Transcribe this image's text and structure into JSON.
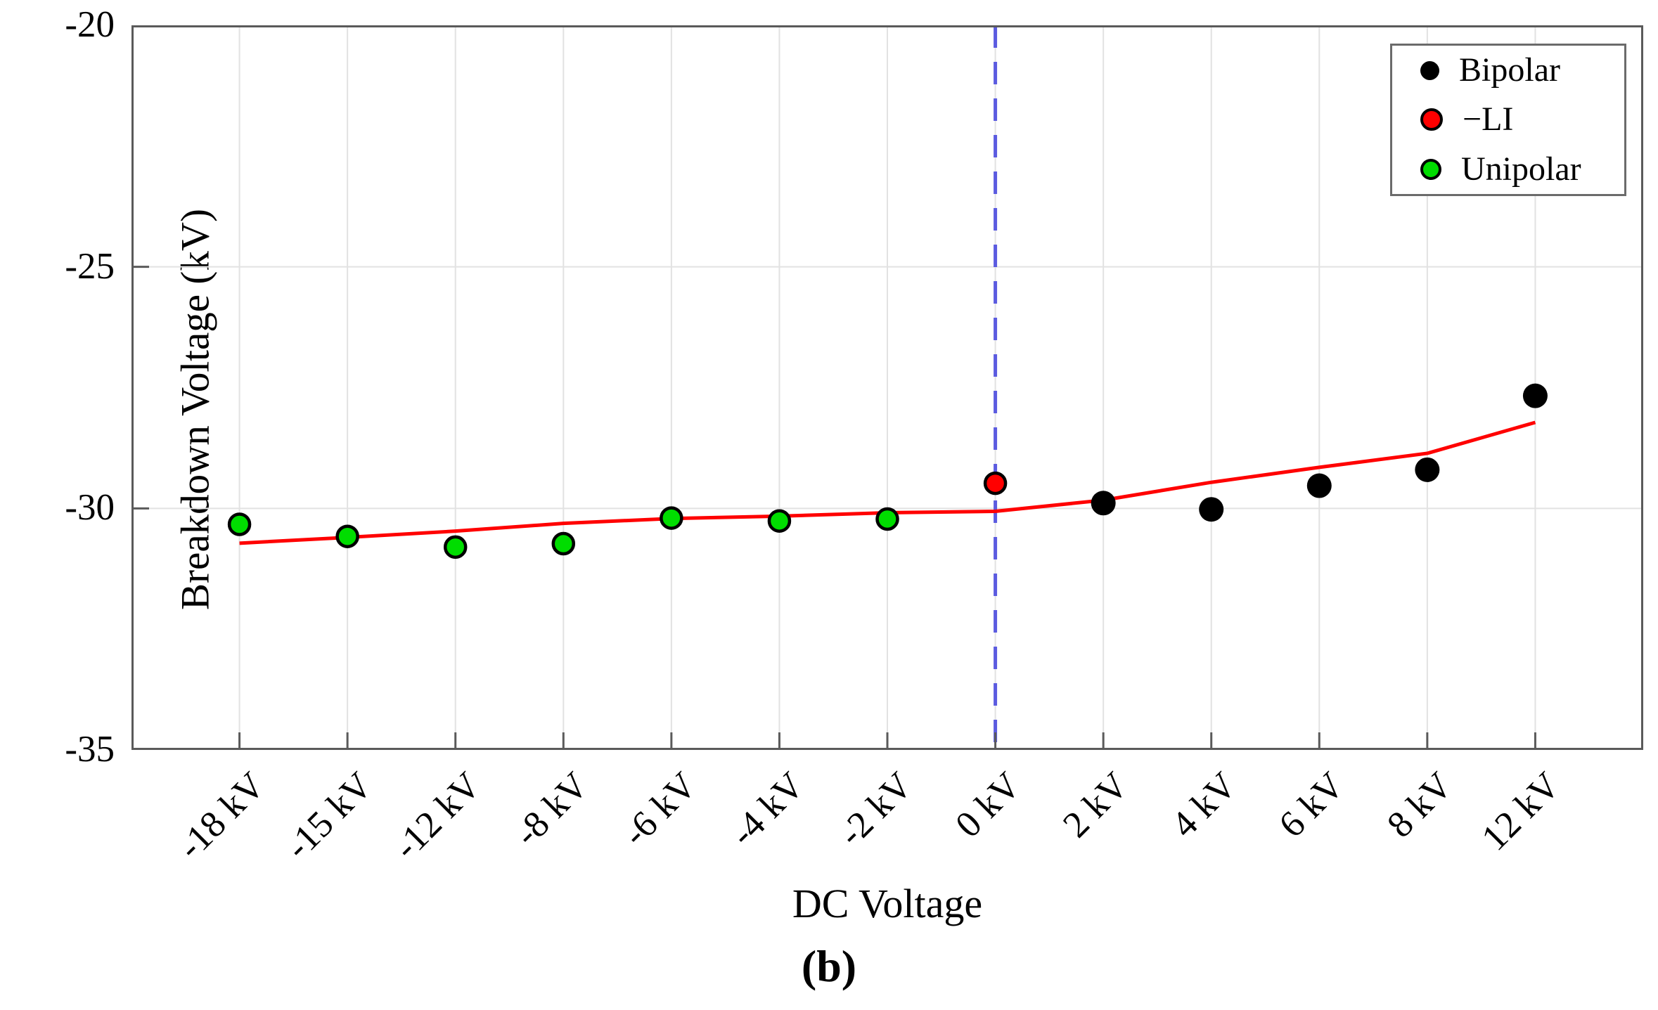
{
  "figure": {
    "caption": "(b)"
  },
  "chart_data": {
    "type": "scatter",
    "title": "",
    "xlabel": "DC Voltage",
    "ylabel": "Breakdown Voltage (kV)",
    "caption": "(b)",
    "categories": [
      "-18 kV",
      "-15 kV",
      "-12 kV",
      "-8 kV",
      "-6 kV",
      "-4 kV",
      "-2 kV",
      "0 kV",
      "2 kV",
      "4 kV",
      "6 kV",
      "8 kV",
      "12 kV"
    ],
    "y_ticks": [
      -20,
      -25,
      -30,
      -35
    ],
    "y_tick_labels": [
      "-20",
      "-25",
      "-30",
      "-35"
    ],
    "ylim": [
      -35,
      -20
    ],
    "grid": true,
    "legend_position": "top-right",
    "series": [
      {
        "name": "Bipolar",
        "type": "scatter",
        "marker": "circle",
        "fill": "#000000",
        "edge": "#000000",
        "category_indices": [
          8,
          9,
          10,
          11,
          12
        ],
        "values": [
          -29.89,
          -30.02,
          -29.53,
          -29.2,
          -27.67
        ]
      },
      {
        "name": "−LI",
        "type": "scatter",
        "marker": "circle",
        "fill": "#ff0000",
        "edge": "#000000",
        "category_indices": [
          7
        ],
        "values": [
          -29.48
        ]
      },
      {
        "name": "Unipolar",
        "type": "scatter",
        "marker": "circle",
        "fill": "#00dd00",
        "edge": "#000000",
        "category_indices": [
          0,
          1,
          2,
          3,
          4,
          5,
          6
        ],
        "values": [
          -30.33,
          -30.58,
          -30.8,
          -30.73,
          -30.2,
          -30.26,
          -30.22
        ]
      },
      {
        "name": "fit-line",
        "type": "line",
        "color": "#ff0000",
        "category_indices": [
          0,
          1,
          2,
          3,
          4,
          5,
          6,
          7,
          8,
          9,
          10,
          11,
          12
        ],
        "values": [
          -30.72,
          -30.6,
          -30.47,
          -30.31,
          -30.21,
          -30.16,
          -30.09,
          -30.06,
          -29.83,
          -29.46,
          -29.15,
          -28.86,
          -28.22
        ]
      }
    ],
    "reference_line": {
      "axis": "x",
      "category": "0 kV",
      "style": "dashed",
      "color": "#5b5be0"
    },
    "colors": {
      "axis": "#5a5a5a",
      "grid": "#e2e2e2",
      "fit_line": "#ff0000",
      "reference_line": "#5b5be0",
      "bipolar": "#000000",
      "li": "#ff0000",
      "unipolar": "#00dd00"
    }
  }
}
